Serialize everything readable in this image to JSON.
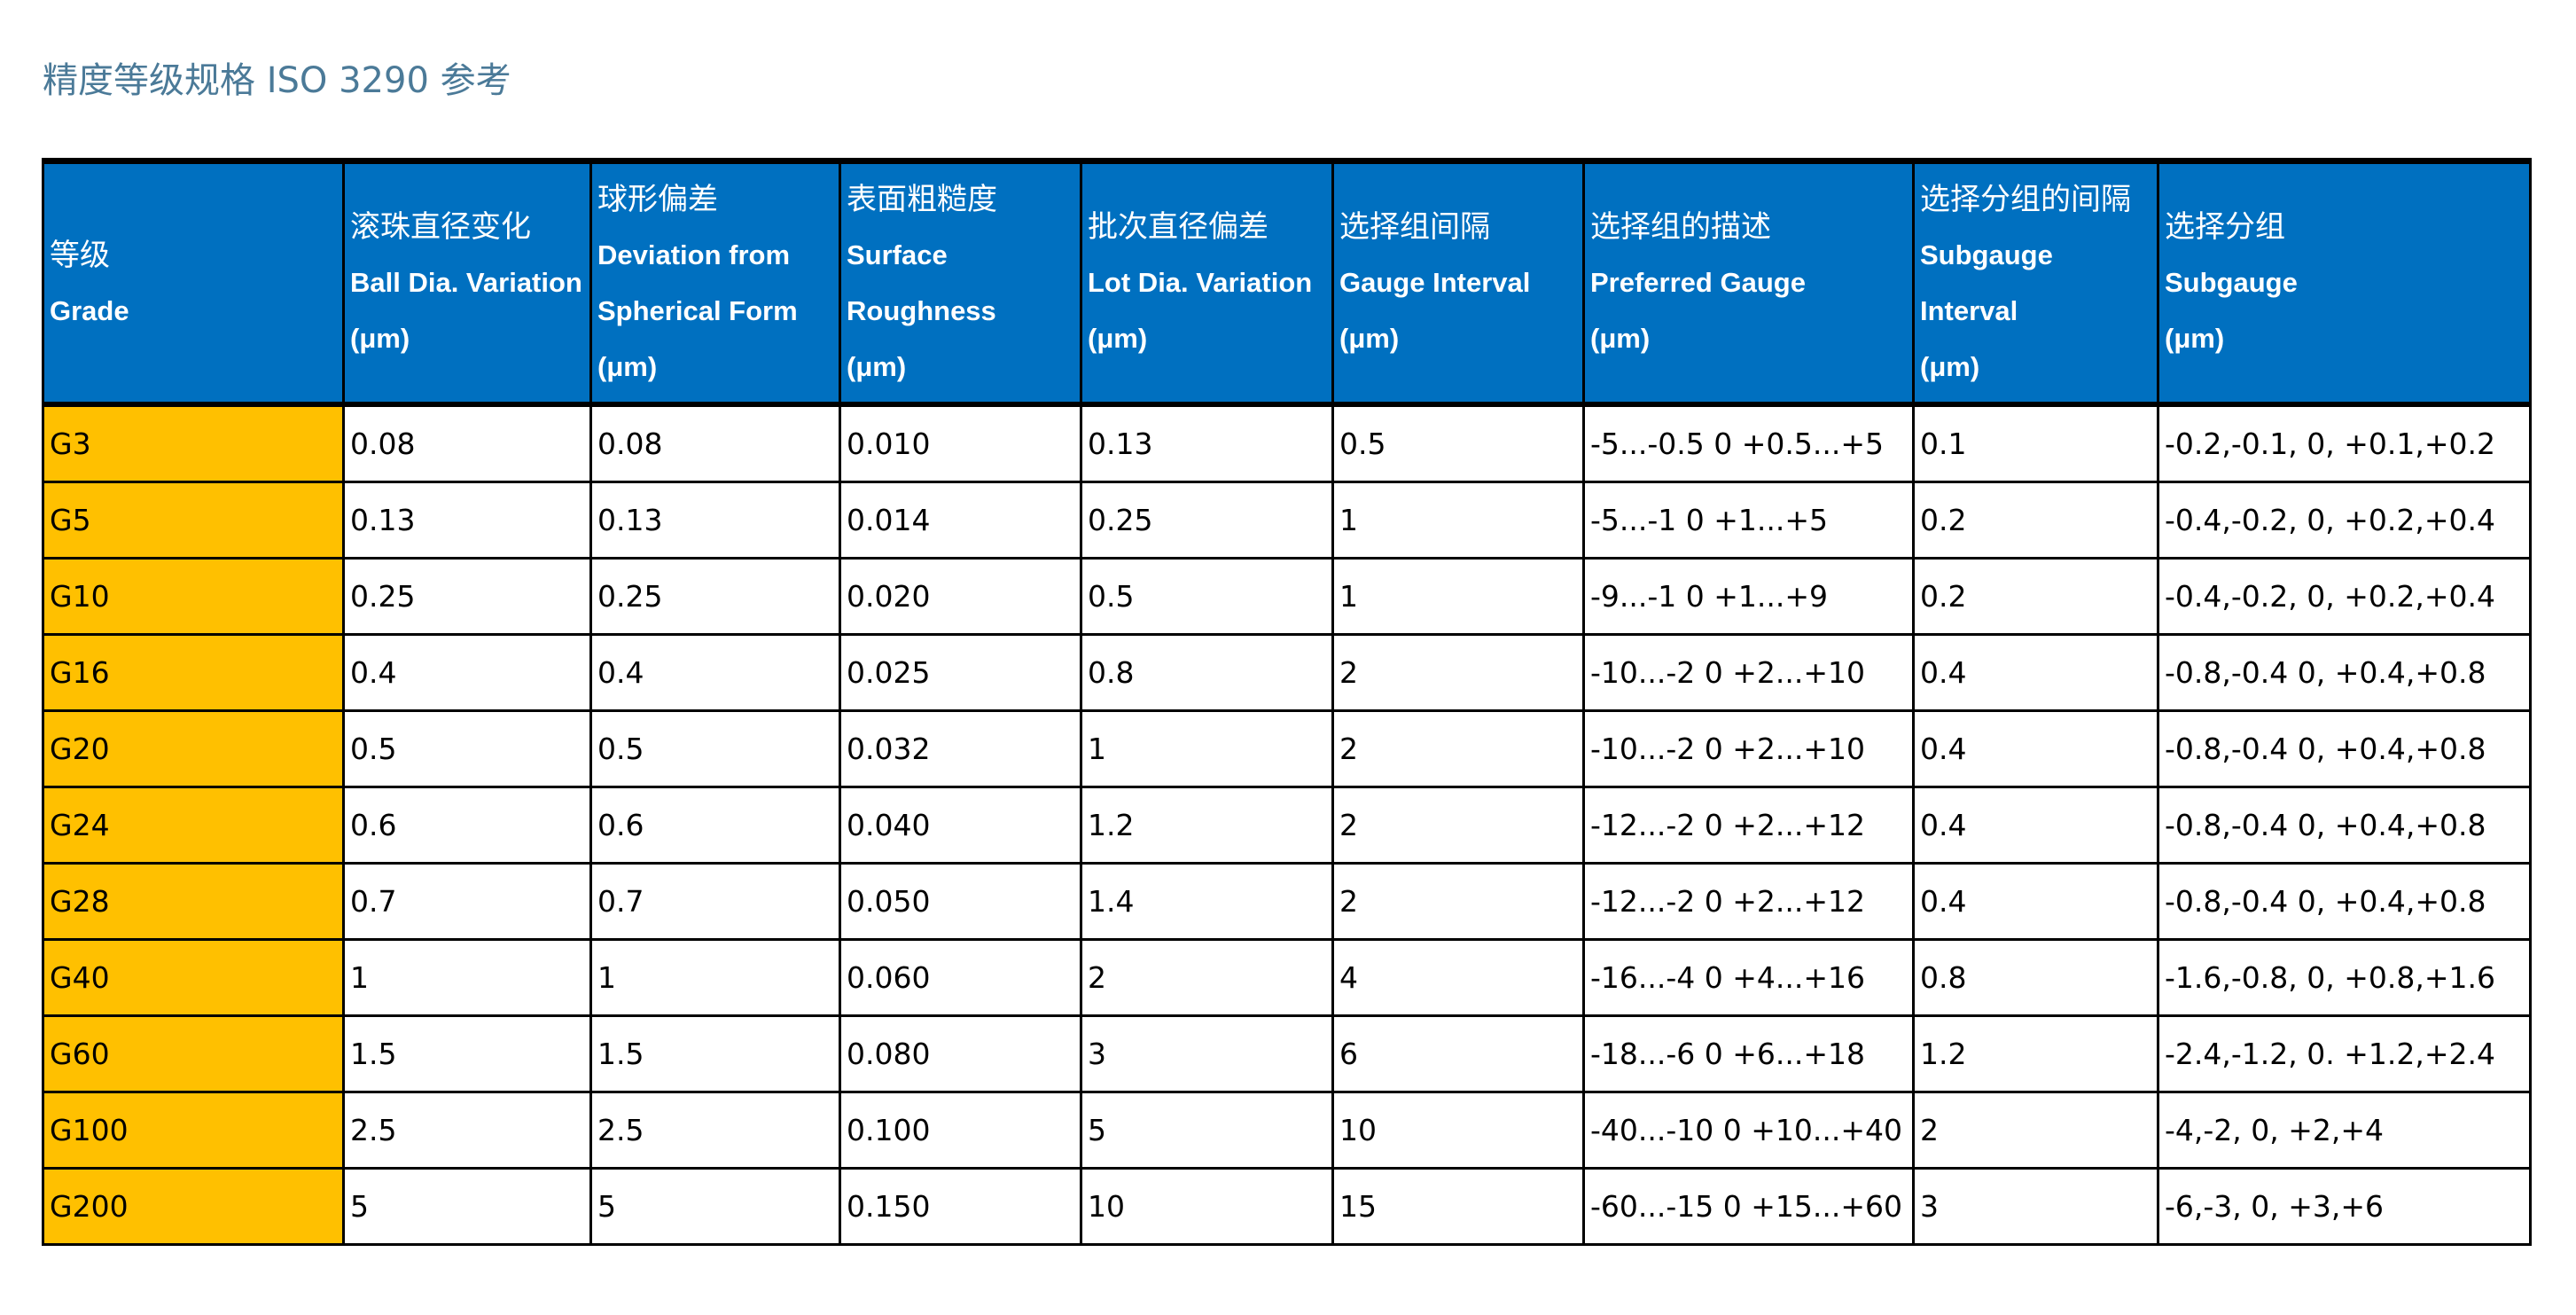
{
  "title": "精度等级规格 ISO 3290 参考",
  "colors": {
    "header_bg": "#0070c0",
    "grade_bg": "#ffc000",
    "title": "#4b7a98"
  },
  "columns": [
    {
      "zh": "等级",
      "en": "Grade",
      "unit": ""
    },
    {
      "zh": "滚珠直径变化",
      "en": "Ball Dia. Variation",
      "unit": "(μm)"
    },
    {
      "zh": "球形偏差",
      "en": "Deviation from Spherical Form",
      "unit": "(μm)"
    },
    {
      "zh": "表面粗糙度",
      "en": "Surface Roughness",
      "unit": "(μm)"
    },
    {
      "zh": "批次直径偏差",
      "en": "Lot Dia. Variation",
      "unit": "(μm)"
    },
    {
      "zh": "选择组间隔",
      "en": "Gauge Interval",
      "unit": "(μm)"
    },
    {
      "zh": "选择组的描述",
      "en": "Preferred Gauge",
      "unit": "(μm)"
    },
    {
      "zh": "选择分组的间隔",
      "en": "Subgauge Interval",
      "unit": "(μm)"
    },
    {
      "zh": "选择分组",
      "en": "Subgauge",
      "unit": "(μm)"
    }
  ],
  "rows": [
    [
      "G3",
      "0.08",
      "0.08",
      "0.010",
      "0.13",
      "0.5",
      "-5...-0.5 0 +0.5...+5",
      "0.1",
      "-0.2,-0.1, 0, +0.1,+0.2"
    ],
    [
      "G5",
      "0.13",
      "0.13",
      "0.014",
      "0.25",
      "1",
      "-5...-1 0 +1...+5",
      "0.2",
      "-0.4,-0.2, 0, +0.2,+0.4"
    ],
    [
      "G10",
      "0.25",
      "0.25",
      "0.020",
      "0.5",
      "1",
      "-9...-1 0 +1...+9",
      "0.2",
      "-0.4,-0.2, 0, +0.2,+0.4"
    ],
    [
      "G16",
      "0.4",
      "0.4",
      "0.025",
      "0.8",
      "2",
      "-10...-2 0 +2...+10",
      "0.4",
      "-0.8,-0.4 0, +0.4,+0.8"
    ],
    [
      "G20",
      "0.5",
      "0.5",
      "0.032",
      "1",
      "2",
      "-10...-2 0 +2...+10",
      "0.4",
      "-0.8,-0.4 0, +0.4,+0.8"
    ],
    [
      "G24",
      "0.6",
      "0.6",
      "0.040",
      "1.2",
      "2",
      "-12...-2 0 +2...+12",
      "0.4",
      "-0.8,-0.4 0, +0.4,+0.8"
    ],
    [
      "G28",
      "0.7",
      "0.7",
      "0.050",
      "1.4",
      "2",
      "-12...-2 0 +2...+12",
      "0.4",
      "-0.8,-0.4 0, +0.4,+0.8"
    ],
    [
      "G40",
      "1",
      "1",
      "0.060",
      "2",
      "4",
      "-16...-4 0 +4...+16",
      "0.8",
      "-1.6,-0.8, 0, +0.8,+1.6"
    ],
    [
      "G60",
      "1.5",
      "1.5",
      "0.080",
      "3",
      "6",
      "-18...-6 0 +6...+18",
      "1.2",
      "-2.4,-1.2, 0. +1.2,+2.4"
    ],
    [
      "G100",
      "2.5",
      "2.5",
      "0.100",
      "5",
      "10",
      "-40...-10 0 +10...+40",
      "2",
      "-4,-2, 0, +2,+4"
    ],
    [
      "G200",
      "5",
      "5",
      "0.150",
      "10",
      "15",
      "-60...-15 0 +15...+60",
      "3",
      "-6,-3, 0, +3,+6"
    ]
  ]
}
